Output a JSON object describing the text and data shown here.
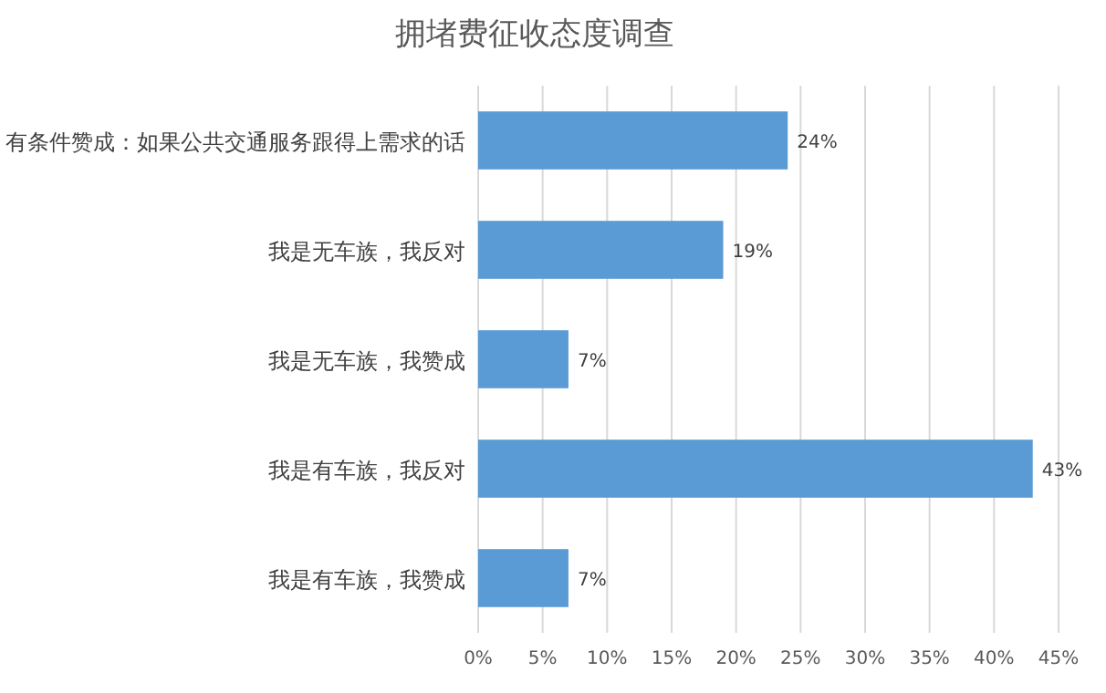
{
  "chart_data": {
    "type": "bar",
    "orientation": "horizontal",
    "title": "拥堵费征收态度调查",
    "categories": [
      "有条件赞成：如果公共交通服务跟得上需求的话",
      "我是无车族，我反对",
      "我是无车族，我赞成",
      "我是有车族，我反对",
      "我是有车族，我赞成"
    ],
    "values": [
      24,
      19,
      7,
      43,
      7
    ],
    "value_labels": [
      "24%",
      "19%",
      "7%",
      "43%",
      "7%"
    ],
    "color": "#5b9bd5",
    "xlim": [
      0,
      45
    ],
    "xticks": [
      {
        "value": 0,
        "label": "0%"
      },
      {
        "value": 5,
        "label": "5%"
      },
      {
        "value": 10,
        "label": "10%"
      },
      {
        "value": 15,
        "label": "15%"
      },
      {
        "value": 20,
        "label": "20%"
      },
      {
        "value": 25,
        "label": "25%"
      },
      {
        "value": 30,
        "label": "30%"
      },
      {
        "value": 35,
        "label": "35%"
      },
      {
        "value": 40,
        "label": "40%"
      },
      {
        "value": 45,
        "label": "45%"
      }
    ],
    "grid": "x"
  }
}
